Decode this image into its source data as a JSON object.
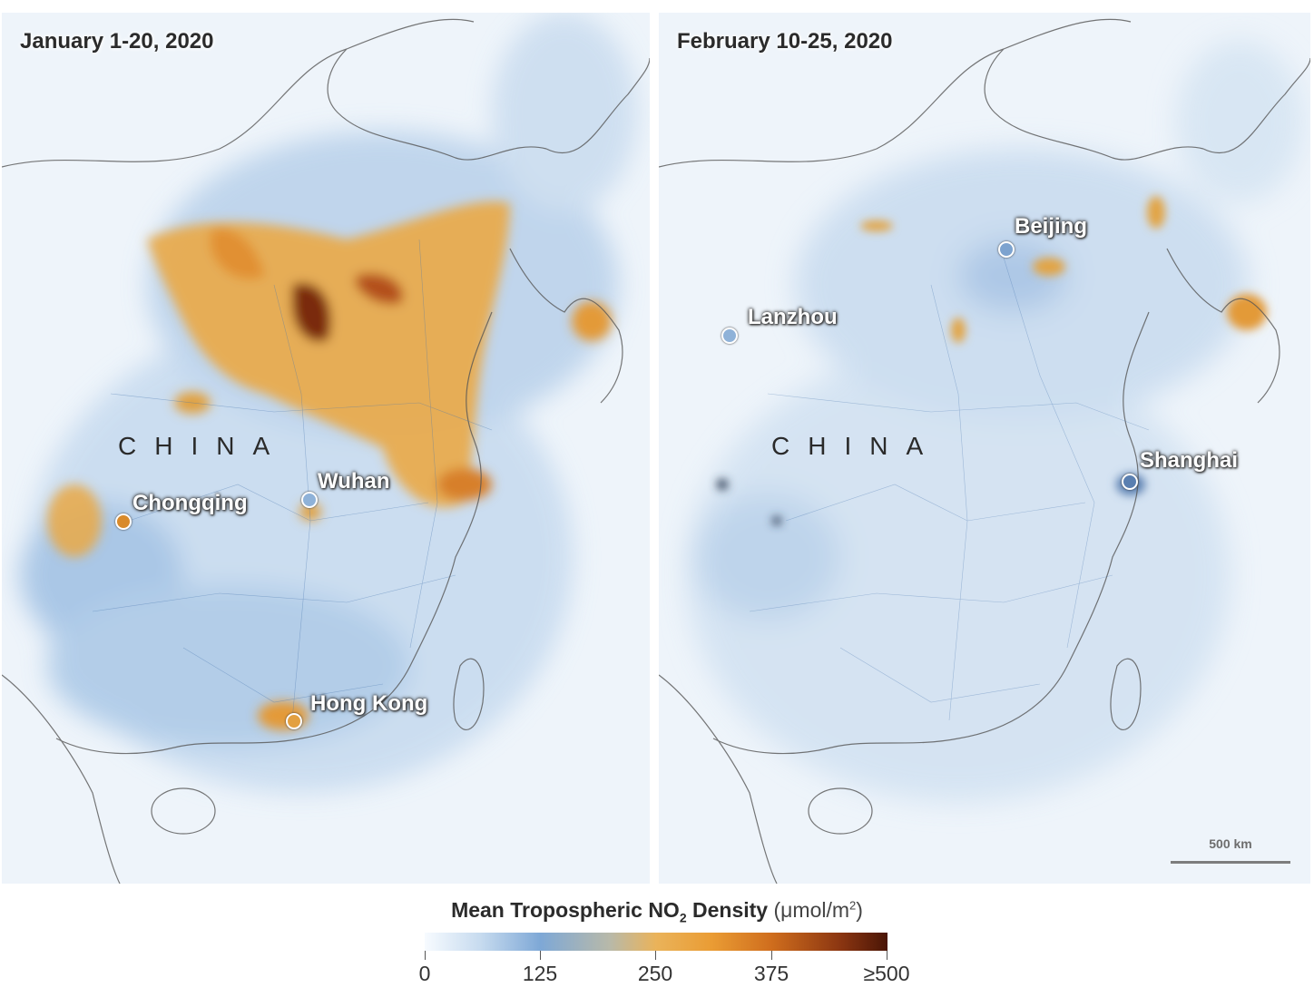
{
  "panels": {
    "left": {
      "title": "January 1-20, 2020",
      "country": "CHINA",
      "cities": [
        "Chongqing",
        "Wuhan",
        "Hong Kong"
      ]
    },
    "right": {
      "title": "February 10-25, 2020",
      "country": "CHINA",
      "cities": [
        "Beijing",
        "Lanzhou",
        "Shanghai"
      ],
      "scale_bar": "500 km"
    }
  },
  "legend": {
    "title_main": "Mean Tropospheric NO",
    "title_sub": "2",
    "title_rest": " Density",
    "unit_pre": "(μmol/m",
    "unit_sup": "2",
    "unit_post": ")",
    "ticks": [
      "0",
      "125",
      "250",
      "375",
      "≥500"
    ]
  },
  "colors": {
    "low": "#f7fbff",
    "blue": "#7ea8d6",
    "orange": "#eab35a",
    "high": "#4a1506"
  }
}
